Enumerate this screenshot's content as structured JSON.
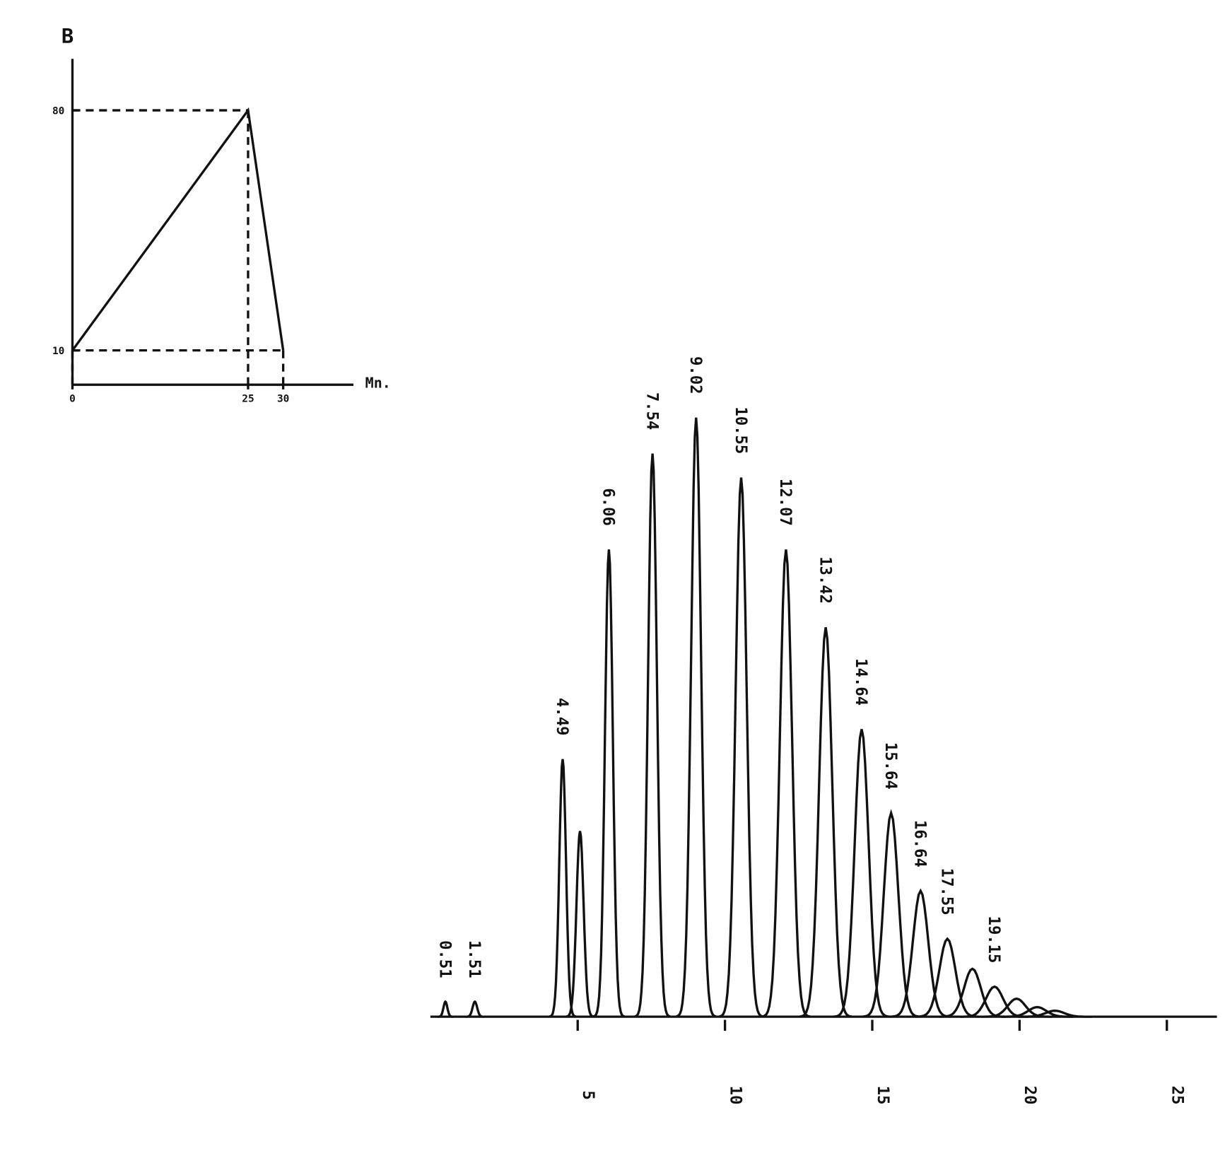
{
  "chart_data": [
    {
      "type": "line",
      "y_label": "B",
      "x_label": "Mn.",
      "x": [
        0,
        25,
        30
      ],
      "values": [
        10,
        80,
        10
      ],
      "xlim": [
        0,
        40
      ],
      "ylim": [
        0,
        95
      ],
      "xticks": [
        0,
        25,
        30
      ],
      "yticks": [
        10,
        80
      ],
      "color": "#111"
    },
    {
      "type": "peaks",
      "x": [
        0.51,
        1.51,
        4.49,
        5.08,
        6.06,
        7.54,
        9.02,
        10.55,
        12.07,
        13.42,
        14.64,
        15.64,
        16.64,
        17.55,
        18.4,
        19.15,
        19.9,
        20.6,
        21.2
      ],
      "values": [
        2.5,
        2.5,
        43,
        31,
        78,
        94,
        100,
        90,
        78,
        65,
        48,
        34,
        21,
        13,
        8,
        5,
        3,
        1.6,
        1
      ],
      "x_labels": [
        "0.51",
        "1.51",
        "4.49",
        null,
        "6.06",
        "7.54",
        "9.02",
        "10.55",
        "12.07",
        "13.42",
        "14.64",
        "15.64",
        "16.64",
        "17.55",
        null,
        "19.15",
        null,
        null,
        null
      ],
      "xlim": [
        0,
        26.7
      ],
      "xticks": [
        5,
        10,
        15,
        20,
        25
      ],
      "color": "#111"
    }
  ]
}
